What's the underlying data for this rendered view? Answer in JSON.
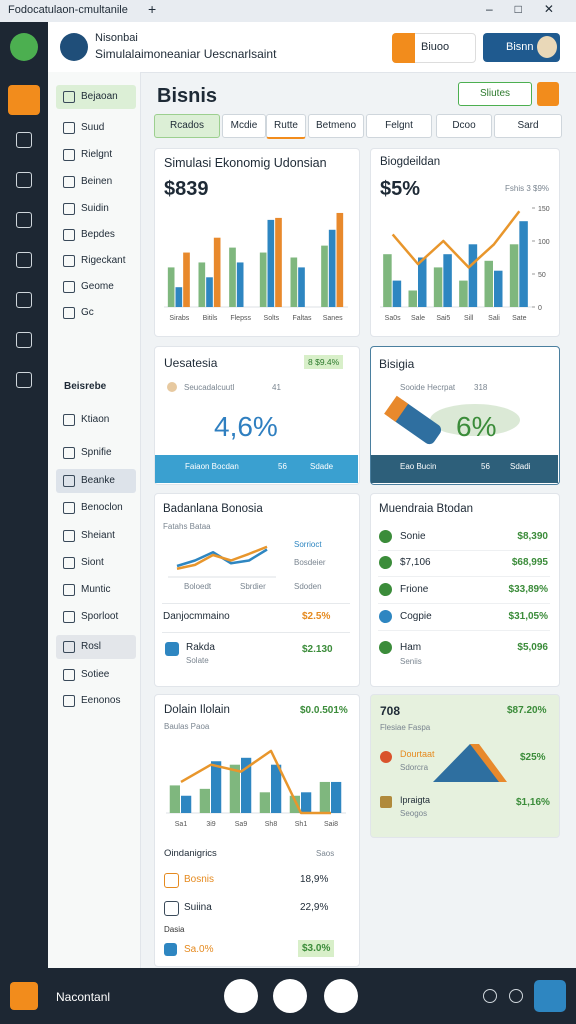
{
  "window": {
    "title": "Fodocatulaon-cmultanile"
  },
  "header": {
    "app_name": "Nisonbai",
    "subtitle": "Simulalaimoneaniar Uescnarlsaint",
    "button_1": "Biuoo",
    "button_2": "Bisnn"
  },
  "sidebar": {
    "items": [
      "Bejaoan",
      "Suud",
      "Rielgnt",
      "Beinen",
      "Suidin",
      "Bepdes",
      "Rigeckant",
      "Geome",
      "Gc"
    ],
    "section": "Beisrebe",
    "items_2": [
      "Ktiaon",
      "Spnifie",
      "Beanke",
      "Benoclon",
      "Sheiant",
      "Siont",
      "Muntic",
      "Sporloot",
      "Rosl",
      "Sotiee",
      "Eenonos"
    ]
  },
  "page": {
    "title": "Bisnis",
    "action": "Sliutes",
    "filters": [
      "Rcados",
      "Mcdie",
      "Rutte",
      "Betmeno",
      "Felgnt"
    ],
    "tools": [
      "Dcoo",
      "Sard"
    ]
  },
  "cards": [
    {
      "title": "Simulasi Ekonomig Udonsian",
      "value": "$839",
      "chart": {
        "type": "bar",
        "ylim": [
          0,
          100
        ],
        "categories": [
          "Sirabs",
          "Bitils",
          "Flepss",
          "Solts",
          "Faltas",
          "Sanes"
        ],
        "series": [
          {
            "color": "#7fb77e",
            "values": [
              40,
              45,
              60,
              55,
              50,
              62
            ]
          },
          {
            "color": "#2e86c1",
            "values": [
              20,
              30,
              45,
              88,
              40,
              78
            ]
          },
          {
            "color": "#e8892c",
            "values": [
              55,
              70,
              0,
              90,
              0,
              95
            ]
          }
        ]
      }
    },
    {
      "title": "Biogdeildan",
      "value": "$5%",
      "subtitle": "Fshis 3 $9%",
      "chart": {
        "type": "bar",
        "ylim": [
          0,
          150
        ],
        "yticks": [
          0,
          50,
          100,
          150
        ],
        "categories": [
          "Sa0s",
          "Sale",
          "Sai5",
          "Sill",
          "Sali",
          "Sate"
        ],
        "series": [
          {
            "color": "#7fb77e",
            "values": [
              80,
              25,
              60,
              40,
              70,
              95
            ]
          },
          {
            "color": "#2e86c1",
            "values": [
              40,
              75,
              80,
              95,
              55,
              130
            ]
          },
          {
            "color": "#e8962c",
            "type": "line",
            "values": [
              110,
              65,
              100,
              60,
              95,
              145
            ]
          }
        ]
      }
    },
    {
      "title": "Uesatesia",
      "badge": "8 $9.4%",
      "row_label": "Seucadalcuutl",
      "row_value": "41",
      "value": "4,6%",
      "strip": [
        "Faiaon Bocdan",
        "56",
        "Sdade"
      ]
    },
    {
      "title": "Bisigia",
      "row_label": "Sooide Hecrpat",
      "row_value": "318",
      "value": "6%",
      "strip": [
        "Eao Bucin",
        "56",
        "Sdadi"
      ]
    },
    {
      "title": "Badanlana Bonosia",
      "subtitle": "Fatahs Bataa",
      "chart": {
        "type": "line",
        "ylim": [
          0,
          60
        ],
        "series": [
          {
            "color": "#2e86c1",
            "values": [
              20,
              30,
              45,
              25,
              30,
              50
            ]
          },
          {
            "color": "#e8962c",
            "values": [
              15,
              22,
              40,
              30,
              42,
              55
            ]
          }
        ]
      },
      "legend": [
        "Sorrioct",
        "Bosdeier"
      ],
      "tags": [
        "Boloedt",
        "Sbrdier",
        "Sdoden"
      ],
      "row_1": [
        "Danjocmmaino",
        "$2.5%"
      ],
      "row_2": [
        "Rakda",
        "Solate",
        "$2.130"
      ]
    },
    {
      "title": "Muendraia Btodan",
      "rows": [
        [
          "Sonie",
          "$8,390"
        ],
        [
          "$7,106",
          "$68,995"
        ],
        [
          "Frione",
          "$33,89%"
        ],
        [
          "Cogpie",
          "$31,05%"
        ],
        [
          "Ham",
          "$5,096"
        ]
      ],
      "row_note": "Seniis"
    },
    {
      "title": "Dolain Ilolain",
      "value": "$0.0.501%",
      "subtitle": "Baulas Paoa",
      "chart": {
        "type": "bar",
        "ylim": [
          0,
          100
        ],
        "categories": [
          "Sa1",
          "3i9",
          "Sa9",
          "Sh8",
          "Sh1",
          "Sai8"
        ],
        "series": [
          {
            "color": "#7fb77e",
            "values": [
              40,
              35,
              70,
              30,
              25,
              45
            ]
          },
          {
            "color": "#2e86c1",
            "values": [
              25,
              75,
              80,
              70,
              30,
              45
            ]
          },
          {
            "color": "#e8962c",
            "type": "line",
            "values": [
              45,
              70,
              60,
              90,
              0,
              0
            ]
          }
        ]
      },
      "list_title": "Oindanigrics",
      "list_note": "Saos",
      "rows": [
        [
          "Bosnis",
          "18,9%"
        ],
        [
          "Suiina",
          "22,9%"
        ]
      ],
      "group": "Dasia",
      "last_row": [
        "Sa.0%",
        "$3.0%"
      ]
    },
    {
      "title": "708",
      "value": "$87.20%",
      "subtitle": "Flesiae Faspa",
      "rows": [
        [
          "Dourtaat",
          "Sdorcra",
          "$25%"
        ],
        [
          "Ipraigta",
          "Seogos",
          "$1,16%"
        ]
      ]
    }
  ],
  "footer": {
    "label": "Nacontanl"
  }
}
